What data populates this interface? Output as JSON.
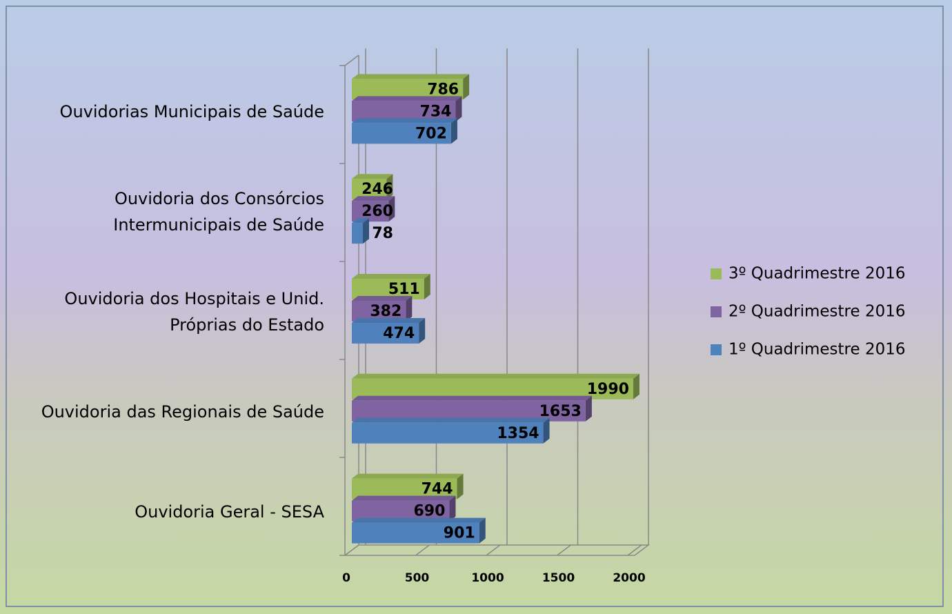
{
  "chart_data": {
    "type": "bar",
    "orientation": "horizontal",
    "categories": [
      "Ouvidorias Municipais de Saúde",
      "Ouvidoria dos Consórcios Intermunicipais de Saúde",
      "Ouvidoria dos Hospitais e Unid. Próprias do Estado",
      "Ouvidoria das Regionais de Saúde",
      "Ouvidoria Geral - SESA"
    ],
    "series": [
      {
        "name": "3º Quadrimestre 2016",
        "color": "#9bbb59",
        "values": [
          786,
          246,
          511,
          1990,
          744
        ]
      },
      {
        "name": "2º Quadrimestre 2016",
        "color": "#8064a2",
        "values": [
          734,
          260,
          382,
          1653,
          690
        ]
      },
      {
        "name": "1º Quadrimestre 2016",
        "color": "#4f81bd",
        "values": [
          702,
          78,
          474,
          1354,
          901
        ]
      }
    ],
    "xlim": [
      0,
      2000
    ],
    "xticks": [
      0,
      500,
      1000,
      1500,
      2000
    ],
    "grid": true,
    "legend": "right"
  }
}
